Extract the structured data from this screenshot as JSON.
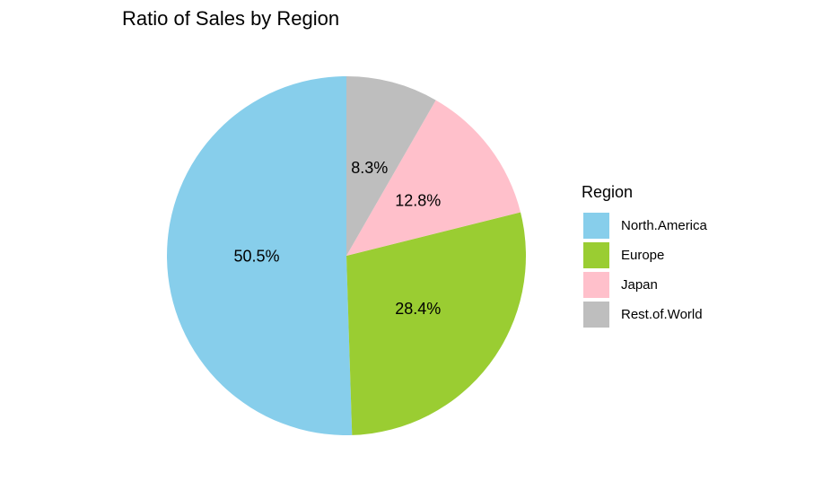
{
  "chart_data": {
    "type": "pie",
    "title": "Ratio of Sales by Region",
    "categories": [
      "North.America",
      "Europe",
      "Japan",
      "Rest.of.World"
    ],
    "values": [
      50.5,
      28.4,
      12.8,
      8.3
    ],
    "value_labels": [
      "50.5%",
      "28.4%",
      "12.8%",
      "8.3%"
    ],
    "colors": [
      "#87CEEB",
      "#9ACD32",
      "#FFC0CB",
      "#BEBEBE"
    ],
    "legend_title": "Region",
    "legend_position": "right"
  }
}
